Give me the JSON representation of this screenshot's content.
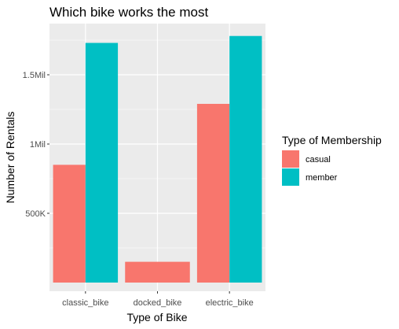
{
  "chart_data": {
    "type": "bar",
    "title": "Which bike works the most",
    "xlabel": "Type of Bike",
    "ylabel": "Number of Rentals",
    "categories": [
      "classic_bike",
      "docked_bike",
      "electric_bike"
    ],
    "series": [
      {
        "name": "casual",
        "values": [
          850000,
          150000,
          1290000
        ]
      },
      {
        "name": "member",
        "values": [
          1730000,
          null,
          1780000
        ]
      }
    ],
    "ylim": [
      0,
      1900000
    ],
    "yticks": [
      {
        "value": 500000,
        "label": "500K"
      },
      {
        "value": 1000000,
        "label": "1Mil"
      },
      {
        "value": 1500000,
        "label": "1.5Mil"
      }
    ],
    "grid": true,
    "legend": {
      "title": "Type of Membership",
      "placement": "right"
    },
    "colors": {
      "casual": "#F8766D",
      "member": "#00BFC4",
      "panel_background": "#EBEBEB",
      "grid": "#FFFFFF"
    }
  }
}
